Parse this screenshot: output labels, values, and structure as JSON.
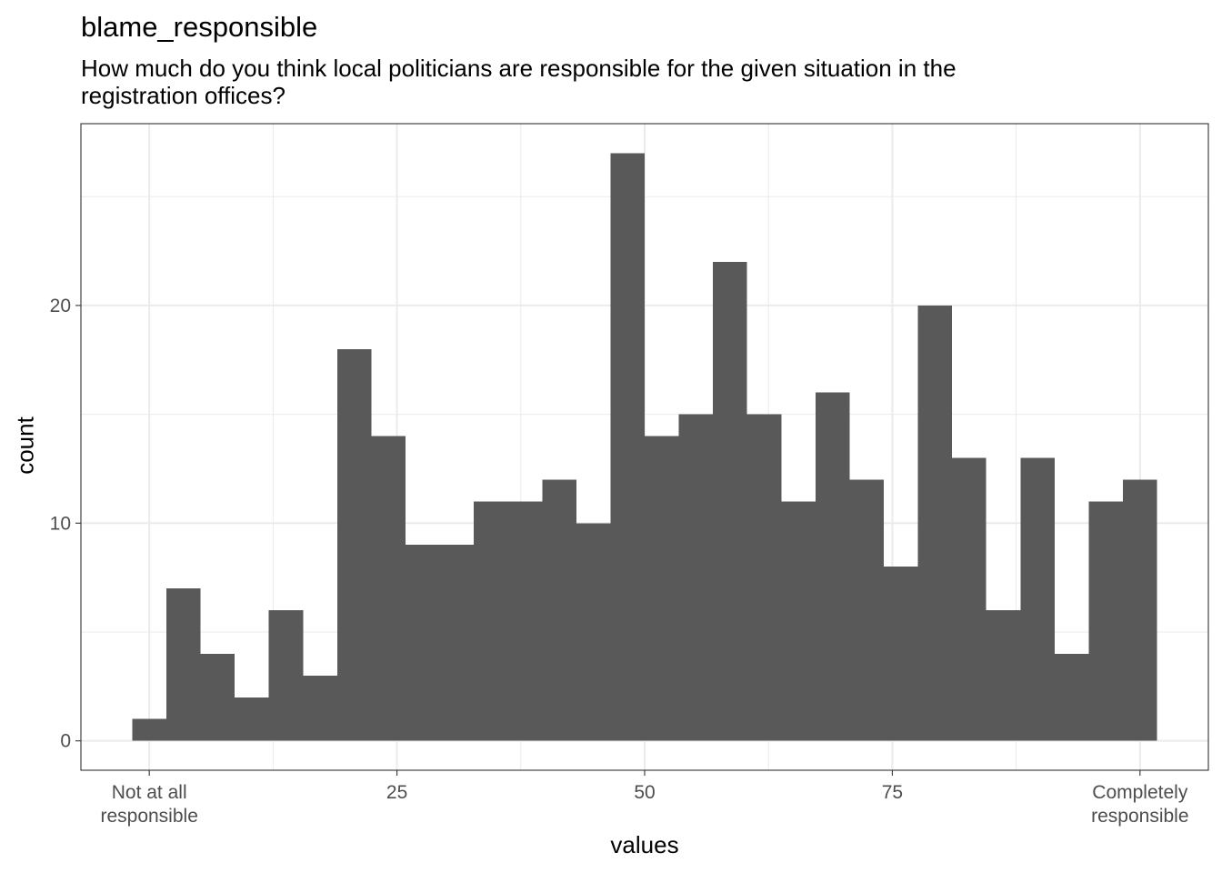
{
  "chart_data": {
    "type": "bar",
    "subtype": "histogram",
    "title": "blame_responsible",
    "subtitle": "How much do you think local politicians are responsible for the given situation in the registration offices?",
    "xlabel": "values",
    "ylabel": "count",
    "xlim": [
      -6.9,
      106.9
    ],
    "ylim": [
      -1.35,
      28.35
    ],
    "bin_width": 3.448,
    "bins": [
      {
        "x": 0.0,
        "count": 1
      },
      {
        "x": 3.448,
        "count": 7
      },
      {
        "x": 6.897,
        "count": 4
      },
      {
        "x": 10.345,
        "count": 2
      },
      {
        "x": 13.793,
        "count": 6
      },
      {
        "x": 17.241,
        "count": 3
      },
      {
        "x": 20.69,
        "count": 18
      },
      {
        "x": 24.138,
        "count": 14
      },
      {
        "x": 27.586,
        "count": 9
      },
      {
        "x": 31.034,
        "count": 9
      },
      {
        "x": 34.483,
        "count": 11
      },
      {
        "x": 37.931,
        "count": 11
      },
      {
        "x": 41.379,
        "count": 12
      },
      {
        "x": 44.828,
        "count": 10
      },
      {
        "x": 48.276,
        "count": 27
      },
      {
        "x": 51.724,
        "count": 14
      },
      {
        "x": 55.172,
        "count": 15
      },
      {
        "x": 58.621,
        "count": 22
      },
      {
        "x": 62.069,
        "count": 15
      },
      {
        "x": 65.517,
        "count": 11
      },
      {
        "x": 68.966,
        "count": 16
      },
      {
        "x": 72.414,
        "count": 12
      },
      {
        "x": 75.862,
        "count": 8
      },
      {
        "x": 79.31,
        "count": 20
      },
      {
        "x": 82.759,
        "count": 13
      },
      {
        "x": 86.207,
        "count": 6
      },
      {
        "x": 89.655,
        "count": 13
      },
      {
        "x": 93.103,
        "count": 4
      },
      {
        "x": 96.552,
        "count": 11
      },
      {
        "x": 100.0,
        "count": 12
      }
    ],
    "x_ticks": [
      {
        "value": 0,
        "label": "Not at all\nresponsible"
      },
      {
        "value": 25,
        "label": "25"
      },
      {
        "value": 50,
        "label": "50"
      },
      {
        "value": 75,
        "label": "75"
      },
      {
        "value": 100,
        "label": "Completely\nresponsible"
      }
    ],
    "y_ticks": [
      {
        "value": 0,
        "label": "0"
      },
      {
        "value": 10,
        "label": "10"
      },
      {
        "value": 20,
        "label": "20"
      }
    ],
    "y_minor_ticks": [
      5,
      15,
      25
    ],
    "x_minor_ticks": [
      12.5,
      37.5,
      62.5,
      87.5
    ],
    "grid": true,
    "colors": {
      "bar": "#595959",
      "grid": "#ebebeb",
      "panel_border": "#333333",
      "tick_text": "#4d4d4d"
    }
  }
}
